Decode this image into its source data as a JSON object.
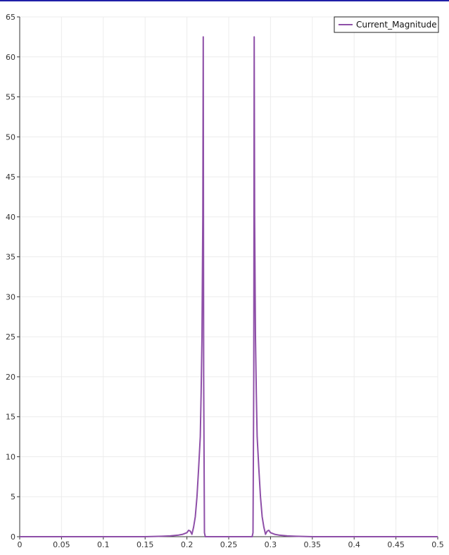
{
  "chart_data": {
    "type": "line",
    "title": "",
    "xlabel": "",
    "ylabel": "",
    "xlim": [
      0,
      0.5
    ],
    "ylim": [
      0,
      65
    ],
    "grid": true,
    "legend_position": "top-right",
    "x_ticks": [
      "0",
      "0.05",
      "0.1",
      "0.15",
      "0.2",
      "0.25",
      "0.3",
      "0.35",
      "0.4",
      "0.45",
      "0.5"
    ],
    "y_ticks": [
      "0",
      "5",
      "10",
      "15",
      "20",
      "25",
      "30",
      "35",
      "40",
      "45",
      "50",
      "55",
      "60",
      "65"
    ],
    "series": [
      {
        "name": "Current_Magnitude",
        "color": "#8e4fa8",
        "x": [
          0,
          0.05,
          0.1,
          0.15,
          0.17,
          0.18,
          0.19,
          0.195,
          0.2,
          0.202,
          0.204,
          0.206,
          0.208,
          0.21,
          0.212,
          0.214,
          0.216,
          0.217,
          0.218,
          0.219,
          0.2195,
          0.22,
          0.221,
          0.222,
          0.223,
          0.25,
          0.278,
          0.279,
          0.28,
          0.2805,
          0.281,
          0.282,
          0.283,
          0.284,
          0.286,
          0.288,
          0.29,
          0.292,
          0.294,
          0.296,
          0.298,
          0.3,
          0.305,
          0.31,
          0.32,
          0.33,
          0.35,
          0.4,
          0.45,
          0.5
        ],
        "y": [
          0,
          0,
          0,
          0,
          0.05,
          0.1,
          0.2,
          0.3,
          0.5,
          0.8,
          0.7,
          0.3,
          1.2,
          2.5,
          5,
          8.5,
          12.5,
          18,
          25,
          40,
          62.5,
          20,
          0.5,
          0,
          0,
          0,
          0,
          0.5,
          20,
          62.5,
          40,
          25,
          18,
          12.5,
          8.5,
          5,
          2.5,
          1.2,
          0.3,
          0.7,
          0.8,
          0.5,
          0.3,
          0.2,
          0.1,
          0.05,
          0,
          0,
          0,
          0
        ]
      }
    ]
  }
}
